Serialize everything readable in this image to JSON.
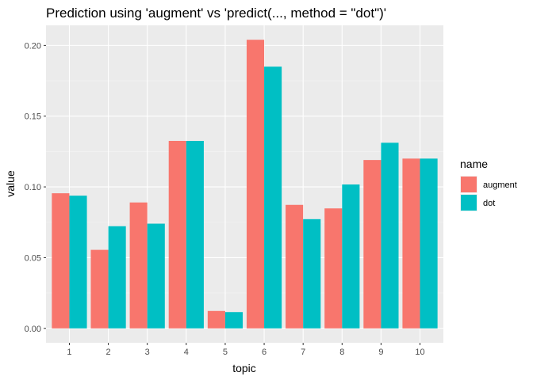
{
  "chart_data": {
    "type": "bar",
    "title": "Prediction using 'augment' vs 'predict(..., method = \"dot\")'",
    "xlabel": "topic",
    "ylabel": "value",
    "categories": [
      "1",
      "2",
      "3",
      "4",
      "5",
      "6",
      "7",
      "8",
      "9",
      "10"
    ],
    "ylim": [
      -0.0102,
      0.2142
    ],
    "yticks": [
      0.0,
      0.05,
      0.1,
      0.15,
      0.2
    ],
    "ytick_labels": [
      "0.00",
      "0.05",
      "0.10",
      "0.15",
      "0.20"
    ],
    "grid": true,
    "legend": {
      "title": "name",
      "position": "right"
    },
    "series": [
      {
        "name": "augment",
        "color": "#F8766D",
        "values": [
          0.0955,
          0.0555,
          0.089,
          0.1325,
          0.0123,
          0.204,
          0.0873,
          0.0848,
          0.119,
          0.12
        ]
      },
      {
        "name": "dot",
        "color": "#00BFC4",
        "values": [
          0.0938,
          0.0722,
          0.074,
          0.1325,
          0.0115,
          0.185,
          0.0772,
          0.1017,
          0.1312,
          0.12
        ]
      }
    ]
  }
}
